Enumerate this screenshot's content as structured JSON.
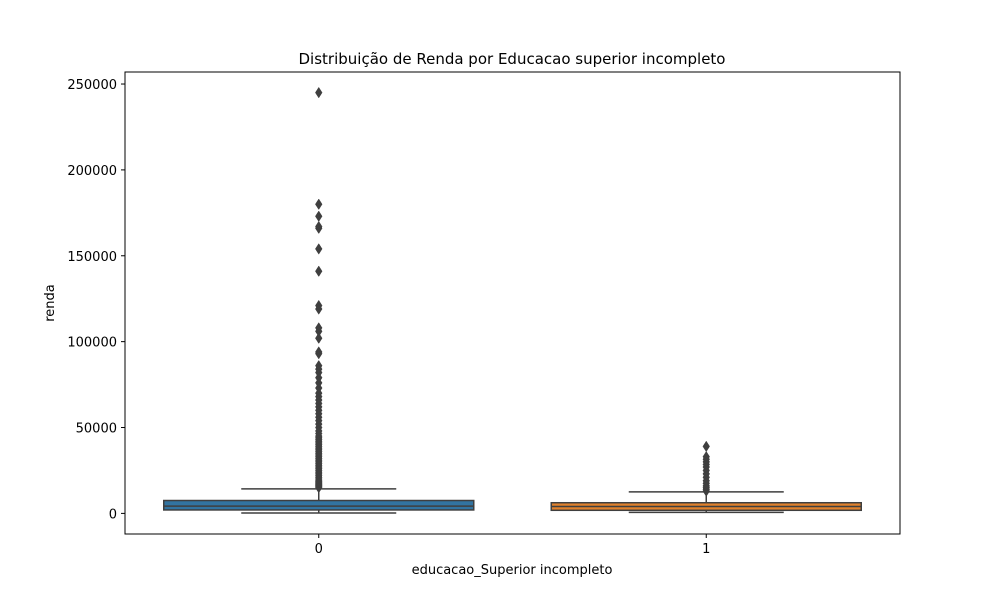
{
  "chart_data": {
    "type": "box",
    "title": "Distribuição de Renda por Educacao superior incompleto",
    "xlabel": "educacao_Superior incompleto",
    "ylabel": "renda",
    "ylim": [
      -12000,
      257000
    ],
    "yticks": [
      0,
      50000,
      100000,
      150000,
      200000,
      250000
    ],
    "yticklabels": [
      "0",
      "50000",
      "100000",
      "150000",
      "200000",
      "250000"
    ],
    "grid": false,
    "categories": [
      "0",
      "1"
    ],
    "series": [
      {
        "category": "0",
        "color": "#3274a1",
        "min": 200,
        "q1": 2000,
        "median": 4200,
        "q3": 7500,
        "max": 14300,
        "outliers": [
          15000,
          15500,
          16000,
          16500,
          17000,
          17500,
          18000,
          18500,
          19000,
          20000,
          21000,
          22000,
          23000,
          24000,
          25000,
          26000,
          27000,
          28000,
          29000,
          30000,
          31000,
          32000,
          33000,
          34000,
          35000,
          36000,
          37000,
          38000,
          39000,
          40000,
          41000,
          42000,
          43000,
          44000,
          45000,
          46500,
          48000,
          50000,
          52000,
          54000,
          56000,
          58000,
          60000,
          62000,
          64000,
          66000,
          68000,
          70000,
          73000,
          76000,
          79000,
          82000,
          84000,
          86000,
          93000,
          94000,
          102000,
          106000,
          108000,
          119000,
          121000,
          141000,
          154000,
          166000,
          167000,
          173000,
          180000,
          245000
        ]
      },
      {
        "category": "1",
        "color": "#e1812c",
        "min": 600,
        "q1": 1800,
        "median": 4000,
        "q3": 6200,
        "max": 12500,
        "outliers": [
          13000,
          14000,
          15000,
          16000,
          17500,
          19000,
          21000,
          23000,
          25000,
          27000,
          28500,
          30000,
          31500,
          33000,
          39000
        ]
      }
    ]
  }
}
